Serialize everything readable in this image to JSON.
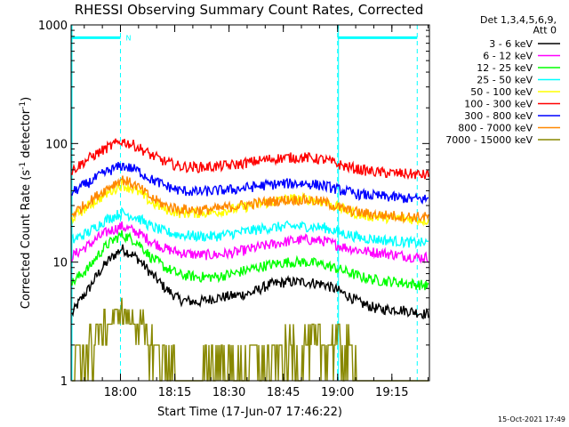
{
  "chart_data": {
    "type": "line",
    "title": "RHESSI Observing Summary Count Rates, Corrected",
    "xlabel": "Start Time (17-Jun-07 17:46:22)",
    "ylabel_main": "Corrected Count Rate (s",
    "ylabel_sup1": "-1",
    "ylabel_mid": " detector",
    "ylabel_sup2": "-1",
    "ylabel_end": ")",
    "yscale": "log",
    "ylim": [
      1,
      1000
    ],
    "xlim_minutes": [
      0,
      99
    ],
    "x_tick_minutes": [
      13.63,
      28.63,
      43.63,
      58.63,
      73.63,
      88.63
    ],
    "x_tick_labels": [
      "18:00",
      "18:15",
      "18:30",
      "18:45",
      "19:00",
      "19:15"
    ],
    "y_ticks": [
      1,
      10,
      100,
      1000
    ],
    "y_tick_labels": [
      "1",
      "10",
      "100",
      "1000"
    ],
    "legend_header": [
      "Det 1,3,4,5,6,9,",
      "Att 0"
    ],
    "legend_position": "top-right outside",
    "series": [
      {
        "name": "3 - 6 keV",
        "color": "#000000",
        "x": [
          0,
          5,
          10,
          14,
          18,
          22,
          26,
          30,
          35,
          40,
          45,
          50,
          55,
          60,
          65,
          70,
          75,
          80,
          85,
          90,
          95,
          99
        ],
        "values": [
          3.5,
          6,
          10,
          13,
          11,
          8,
          6,
          4.8,
          4.6,
          5,
          5.2,
          5.5,
          6.5,
          6.8,
          6.8,
          6.5,
          5.5,
          4.5,
          4,
          4,
          3.8,
          3.6
        ]
      },
      {
        "name": "6 - 12 keV",
        "color": "#ff00ff",
        "x": [
          0,
          5,
          10,
          14,
          18,
          22,
          26,
          30,
          35,
          40,
          45,
          50,
          55,
          60,
          65,
          70,
          75,
          80,
          85,
          90,
          95,
          99
        ],
        "values": [
          11,
          14,
          18,
          20,
          18,
          15,
          13,
          12,
          11.5,
          11.5,
          12,
          13,
          14,
          15,
          15.5,
          15,
          13.5,
          12.5,
          12,
          11.5,
          11,
          11
        ]
      },
      {
        "name": "12 - 25 keV",
        "color": "#00ff00",
        "x": [
          0,
          5,
          10,
          14,
          18,
          22,
          26,
          30,
          35,
          40,
          45,
          50,
          55,
          60,
          65,
          70,
          75,
          80,
          85,
          90,
          95,
          99
        ],
        "values": [
          6.5,
          9,
          14,
          17,
          15,
          11,
          9,
          7.8,
          7.5,
          7.5,
          8,
          8.8,
          9.5,
          10,
          10,
          9.5,
          8.5,
          7.5,
          7,
          6.8,
          6.5,
          6.3
        ]
      },
      {
        "name": "25 - 50 keV",
        "color": "#00ffff",
        "x": [
          0,
          5,
          10,
          14,
          18,
          22,
          26,
          30,
          35,
          40,
          45,
          50,
          55,
          60,
          65,
          70,
          75,
          80,
          85,
          90,
          95,
          99
        ],
        "values": [
          15,
          18,
          23,
          26,
          24,
          20,
          18,
          17,
          16.5,
          16.5,
          17.5,
          18.5,
          19.5,
          20,
          20,
          19.5,
          17.5,
          16,
          15.5,
          15,
          14.5,
          14.5
        ]
      },
      {
        "name": "50 - 100 keV",
        "color": "#ffff00",
        "x": [
          0,
          5,
          10,
          14,
          18,
          22,
          26,
          30,
          35,
          40,
          45,
          50,
          55,
          60,
          65,
          70,
          75,
          80,
          85,
          90,
          95,
          99
        ],
        "values": [
          23,
          30,
          38,
          45,
          40,
          32,
          28,
          26,
          26,
          26.5,
          28,
          30,
          32,
          34,
          34,
          32,
          28,
          25,
          24,
          23.5,
          23,
          22.5
        ]
      },
      {
        "name": "100 - 300 keV",
        "color": "#ff0000",
        "x": [
          0,
          5,
          10,
          14,
          18,
          22,
          26,
          30,
          35,
          40,
          45,
          50,
          55,
          60,
          65,
          70,
          75,
          80,
          85,
          90,
          95,
          99
        ],
        "values": [
          58,
          75,
          92,
          105,
          95,
          80,
          70,
          64,
          63,
          64,
          66,
          70,
          74,
          76,
          76,
          73,
          65,
          60,
          57,
          56,
          55,
          54
        ]
      },
      {
        "name": "300 - 800 keV",
        "color": "#0000ff",
        "x": [
          0,
          5,
          10,
          14,
          18,
          22,
          26,
          30,
          35,
          40,
          45,
          50,
          55,
          60,
          65,
          70,
          75,
          80,
          85,
          90,
          95,
          99
        ],
        "values": [
          38,
          47,
          58,
          65,
          60,
          50,
          44,
          40,
          39,
          40,
          41,
          43,
          45,
          46,
          46,
          44,
          40,
          37,
          36,
          35,
          34,
          34
        ]
      },
      {
        "name": "800 - 7000 keV",
        "color": "#ff8800",
        "x": [
          0,
          5,
          10,
          14,
          18,
          22,
          26,
          30,
          35,
          40,
          45,
          50,
          55,
          60,
          65,
          70,
          75,
          80,
          85,
          90,
          95,
          99
        ],
        "values": [
          25,
          32,
          42,
          50,
          44,
          35,
          30,
          28,
          27.5,
          28,
          29.5,
          31,
          32.5,
          33.5,
          33.5,
          32,
          28,
          26,
          25,
          24.5,
          24,
          24
        ]
      },
      {
        "name": "7000 - 15000 keV",
        "color": "#888800",
        "x": [
          0,
          5,
          10,
          14,
          18,
          22,
          26,
          30,
          35,
          40,
          45,
          50,
          55,
          60,
          65,
          70,
          75,
          80,
          85,
          90,
          95,
          99
        ],
        "values": [
          1,
          2,
          3,
          4,
          3,
          2,
          1.5,
          1,
          1,
          1.5,
          1.2,
          1.5,
          1.3,
          1.8,
          2,
          2,
          2,
          1,
          1,
          1,
          1,
          1
        ]
      }
    ],
    "annotations": {
      "night_boundaries_minutes": [
        0,
        13.63,
        73.63,
        95.63
      ],
      "saa_boundaries_minutes": [
        0,
        73.63
      ],
      "night_bars_minutes": [
        [
          0,
          13.63
        ],
        [
          73.63,
          95.63
        ]
      ],
      "night_marker_label": "N",
      "night_level": 780
    }
  },
  "footer": {
    "timestamp": "15-Oct-2021 17:49"
  },
  "colors": {
    "annotation": "#00ffff",
    "frame": "#000000",
    "background": "#ffffff"
  }
}
